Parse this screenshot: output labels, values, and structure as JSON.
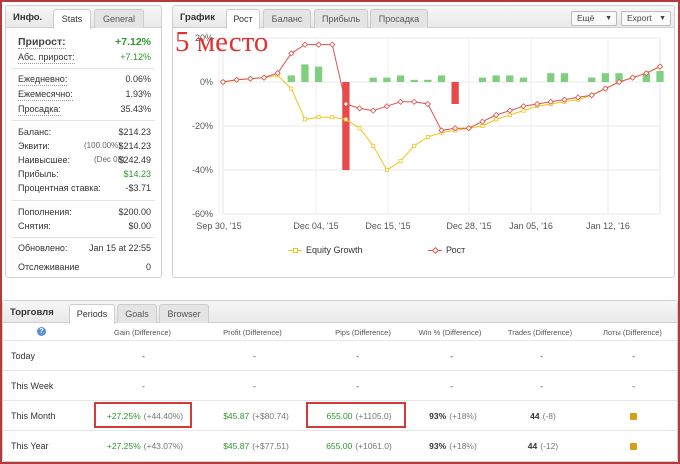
{
  "left_panel": {
    "title": "Инфо.",
    "tabs": [
      "Stats",
      "General"
    ],
    "gain": {
      "label": "Прирост:",
      "value": "+7.12%"
    },
    "abs_gain": {
      "label": "Абс. прирост:",
      "value": "+7.12%"
    },
    "daily": {
      "label": "Ежедневно:",
      "value": "0.06%"
    },
    "monthly": {
      "label": "Ежемесячно:",
      "value": "1.93%"
    },
    "drawdown": {
      "label": "Просадка:",
      "value": "35.43%"
    },
    "balance": {
      "label": "Баланс:",
      "value": "$214.23"
    },
    "equity": {
      "label": "Эквити:",
      "pct": "(100.00%)",
      "value": "$214.23"
    },
    "highest": {
      "label": "Наивысшее:",
      "date": "(Dec 08)",
      "value": "$242.49"
    },
    "profit": {
      "label": "Прибыль:",
      "value": "$14.23"
    },
    "interest": {
      "label": "Процентная ставка:",
      "value": "-$3.71"
    },
    "deposits": {
      "label": "Пополнения:",
      "value": "$200.00"
    },
    "withdrawals": {
      "label": "Снятия:",
      "value": "$0.00"
    },
    "updated": {
      "label": "Обновлено:",
      "value": "Jan 15 at 22:55"
    },
    "tracking": {
      "label": "Отслеживание",
      "value": "0"
    }
  },
  "chart_panel": {
    "title": "График",
    "tabs": [
      "Рост",
      "Баланс",
      "Прибыль",
      "Просадка"
    ],
    "buttons": {
      "more": "Ещё",
      "export": "Export"
    },
    "annotation": "5 место",
    "legend": {
      "equity": "Equity Growth",
      "growth": "Рост"
    }
  },
  "chart_data": {
    "type": "line",
    "y_ticks": [
      "20%",
      "0%",
      "-20%",
      "-40%",
      "-60%"
    ],
    "ylim": [
      -60,
      20
    ],
    "x_ticks": [
      "Sep 30, '15",
      "Dec 04, '15",
      "Dec 15, '15",
      "Dec 28, '15",
      "Jan 05, '16",
      "Jan 12, '16"
    ],
    "colors": {
      "growth": "#d9534f",
      "equity": "#f0c419",
      "bar_pos": "#7fcf7f",
      "bar_neg": "#e84a4a"
    },
    "series": [
      {
        "name": "Рост",
        "values": [
          0,
          1,
          1.5,
          2,
          4,
          13,
          17,
          17,
          17,
          -10,
          -12,
          -13,
          -11,
          -9,
          -9,
          -10,
          -22,
          -21,
          -21,
          -18,
          -15,
          -13,
          -11,
          -10,
          -9,
          -8,
          -7,
          -6,
          -3,
          0,
          2,
          4,
          7
        ]
      },
      {
        "name": "Equity Growth",
        "values": [
          0,
          1,
          1.5,
          2,
          3,
          -3,
          -17,
          -16,
          -16,
          -17,
          -21,
          -29,
          -40,
          -36,
          -29,
          -25,
          -23,
          -22,
          -21,
          -20,
          -17,
          -15,
          -13,
          -11,
          -10,
          -9,
          -8,
          -6,
          -3,
          0,
          2,
          4,
          7
        ]
      }
    ],
    "bars": [
      0,
      0,
      0,
      0,
      0,
      3,
      8,
      7,
      0,
      -40,
      0,
      2,
      2,
      3,
      1,
      1,
      3,
      -10,
      0,
      2,
      3,
      3,
      2,
      0,
      4,
      4,
      0,
      2,
      4,
      4,
      0,
      4,
      5
    ]
  },
  "table": {
    "title": "Торговля",
    "tabs": [
      "Periods",
      "Goals",
      "Browser"
    ],
    "help": "?",
    "headers": [
      "Gain (Difference)",
      "Profit (Difference)",
      "Pips (Difference)",
      "Win % (Difference)",
      "Trades (Difference)",
      "Лоты (Difference)"
    ],
    "rows": [
      {
        "period": "Today",
        "gain": "-",
        "gain_diff": "",
        "profit": "-",
        "profit_diff": "",
        "pips": "-",
        "pips_diff": "",
        "win": "-",
        "win_diff": "",
        "trades": "-",
        "trades_diff": "",
        "lots": "-"
      },
      {
        "period": "This Week",
        "gain": "-",
        "gain_diff": "",
        "profit": "-",
        "profit_diff": "",
        "pips": "-",
        "pips_diff": "",
        "win": "-",
        "win_diff": "",
        "trades": "-",
        "trades_diff": "",
        "lots": "-"
      },
      {
        "period": "This Month",
        "gain": "+27.25%",
        "gain_diff": "(+44.40%)",
        "profit": "$45.87",
        "profit_diff": "(+$80.74)",
        "pips": "655.00",
        "pips_diff": "(+1105.0)",
        "win": "93%",
        "win_diff": "(+18%)",
        "trades": "44",
        "trades_diff": "(-8)",
        "lots": "lock-icon"
      },
      {
        "period": "This Year",
        "gain": "+27.25%",
        "gain_diff": "(+43.07%)",
        "profit": "$45.87",
        "profit_diff": "(+$77.51)",
        "pips": "655.00",
        "pips_diff": "(+1061.0)",
        "win": "93%",
        "win_diff": "(+18%)",
        "trades": "44",
        "trades_diff": "(-12)",
        "lots": "lock-icon"
      }
    ]
  }
}
